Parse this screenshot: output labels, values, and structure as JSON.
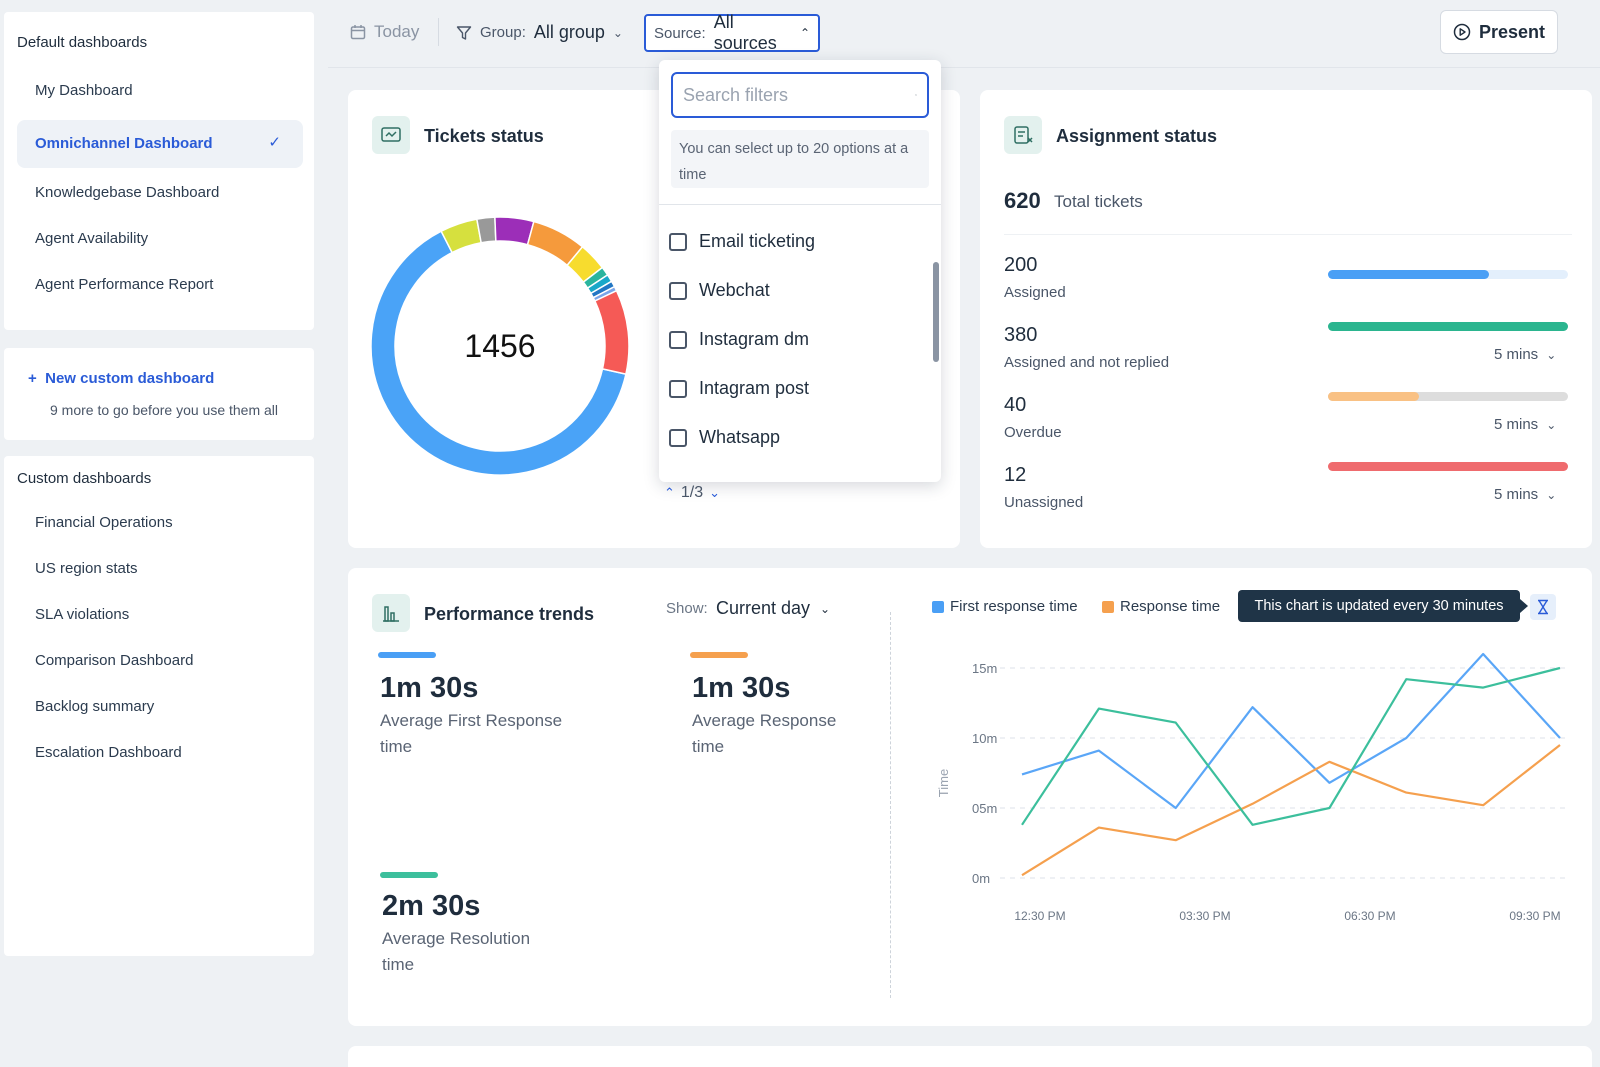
{
  "sidebar": {
    "default_heading": "Default dashboards",
    "default_items": [
      "My Dashboard",
      "Omnichannel Dashboard",
      "Knowledgebase Dashboard",
      "Agent Availability",
      "Agent Performance Report"
    ],
    "new_custom": "New custom dashboard",
    "new_custom_sub": "9 more to go before you use them all",
    "custom_heading": "Custom dashboards",
    "custom_items": [
      "Financial Operations",
      "US region stats",
      "SLA violations",
      "Comparison Dashboard",
      "Backlog summary",
      "Escalation Dashboard"
    ]
  },
  "topbar": {
    "today": "Today",
    "group_label": "Group:",
    "group_value": "All group",
    "source_label": "Source:",
    "source_value": "All sources",
    "present": "Present"
  },
  "tickets": {
    "title": "Tickets status",
    "total": "1456",
    "pager": "1/3"
  },
  "dropdown": {
    "search_placeholder": "Search filters",
    "note": "You can select up to 20 options at a time",
    "options": [
      "Email ticketing",
      "Webchat",
      "Instagram dm",
      "Intagram post",
      "Whatsapp"
    ]
  },
  "assignment": {
    "title": "Assignment status",
    "total_num": "620",
    "total_label": "Total tickets",
    "rows": [
      {
        "num": "200",
        "label": "Assigned",
        "fill": 0.67,
        "color": "#4a9ff5",
        "track": "#e3effc",
        "mins": ""
      },
      {
        "num": "380",
        "label": "Assigned and not replied",
        "fill": 1.0,
        "color": "#2bb58f",
        "track": "#dff3ec",
        "mins": "5 mins"
      },
      {
        "num": "40",
        "label": "Overdue",
        "fill": 0.38,
        "color": "#f9c184",
        "track": "#dddddd",
        "mins": "5 mins"
      },
      {
        "num": "12",
        "label": "Unassigned",
        "fill": 1.0,
        "color": "#ef6b6e",
        "track": "#fbe3e3",
        "mins": "5 mins"
      }
    ]
  },
  "performance": {
    "title": "Performance trends",
    "show_label": "Show:",
    "show_value": "Current day",
    "metrics": [
      {
        "value": "1m 30s",
        "label": "Average First Response time",
        "color": "#4a9ff5"
      },
      {
        "value": "1m 30s",
        "label": "Average Response time",
        "color": "#f5a04e"
      },
      {
        "value": "2m 30s",
        "label": "Average Resolution time",
        "color": "#3cbf9c"
      }
    ],
    "legend": [
      "First response time",
      "Response time"
    ],
    "tooltip": "This chart is updated every 30 minutes"
  },
  "chart_data": {
    "type": "line",
    "title": "",
    "xlabel": "",
    "ylabel": "Time",
    "y_ticks": [
      "0m",
      "05m",
      "10m",
      "15m"
    ],
    "x_ticks": [
      "12:30 PM",
      "03:30 PM",
      "06:30 PM",
      "09:30 PM"
    ],
    "ylim": [
      0,
      15
    ],
    "x": [
      0,
      1,
      2,
      3,
      4,
      5,
      6,
      7
    ],
    "series": [
      {
        "name": "First response time",
        "color": "#5aa6f7",
        "values": [
          7.4,
          9.1,
          5.0,
          12.2,
          6.8,
          10.0,
          16.0,
          10.0
        ]
      },
      {
        "name": "Response time",
        "color": "#f5a04e",
        "values": [
          0.2,
          3.6,
          2.7,
          5.3,
          8.3,
          6.1,
          5.2,
          9.5
        ]
      },
      {
        "name": "Resolution time",
        "color": "#3cbf9c",
        "values": [
          3.8,
          12.1,
          11.1,
          3.8,
          5.0,
          14.2,
          13.6,
          15.0
        ]
      }
    ]
  },
  "donut": {
    "slices": [
      {
        "value": 68.5,
        "color": "#4aa3f7"
      },
      {
        "value": 5.0,
        "color": "#d6e03e"
      },
      {
        "value": 2.4,
        "color": "#999999"
      },
      {
        "value": 5.2,
        "color": "#9c2eb8"
      },
      {
        "value": 7.3,
        "color": "#f59a3c"
      },
      {
        "value": 3.8,
        "color": "#f7dc2e"
      },
      {
        "value": 1.2,
        "color": "#2ab59e"
      },
      {
        "value": 1.0,
        "color": "#1aa8c9"
      },
      {
        "value": 0.8,
        "color": "#2277c4"
      },
      {
        "value": 0.6,
        "color": "#7aa6e8"
      },
      {
        "value": 11.3,
        "color": "#f55a56"
      }
    ]
  }
}
